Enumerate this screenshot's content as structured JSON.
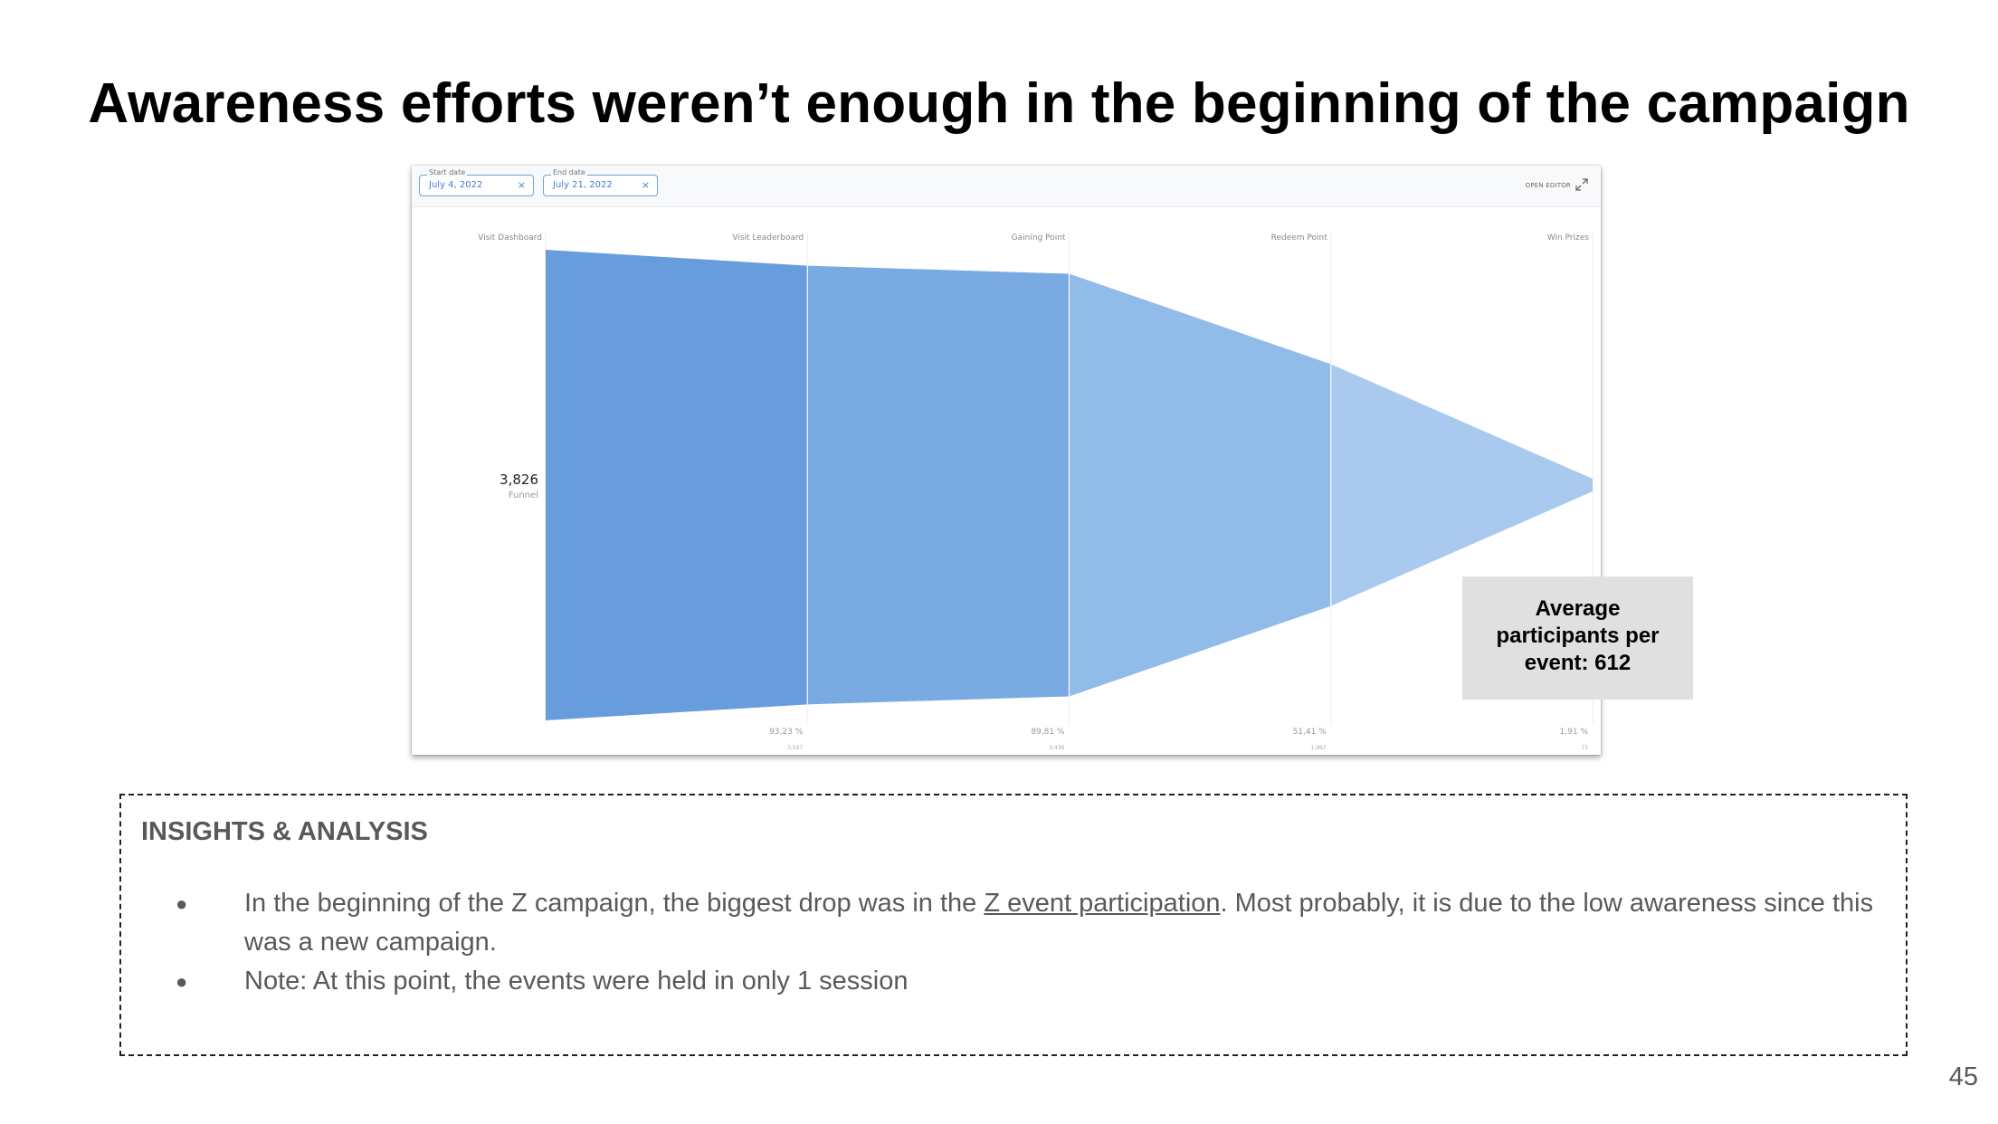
{
  "slide": {
    "title": "Awareness efforts weren’t enough in the beginning of the campaign",
    "page_number": "45"
  },
  "filters": {
    "start_date": {
      "legend": "Start date",
      "value": "July 4, 2022",
      "clear": "×"
    },
    "end_date": {
      "legend": "End date",
      "value": "July 21, 2022",
      "clear": "×"
    },
    "open_editor_label": "OPEN EDITOR",
    "expand_icon": "expand-icon"
  },
  "chart_data": {
    "type": "funnel",
    "steps": [
      "Visit Dashboard",
      "Visit Leaderboard",
      "Gaining Point",
      "Redeem Point",
      "Win Prizes"
    ],
    "values": [
      3826,
      3567,
      3436,
      1967,
      73
    ],
    "conversion_labels": [
      "",
      "93,23 %",
      "89,81 %",
      "51,41 %",
      "1,91 %"
    ],
    "count_labels": [
      "",
      "3,567",
      "3,436",
      "1,967",
      "73"
    ],
    "total_label": "3,826",
    "total_sublabel": "Funnel",
    "colors": [
      "#679ddd",
      "#7aaae2",
      "#91bbe8",
      "#aac9ee"
    ]
  },
  "callout": {
    "line1": "Average",
    "line2": "participants per",
    "line3": "event: 612"
  },
  "insights": {
    "heading": "INSIGHTS & ANALYSIS",
    "bullet_char": "●",
    "bullets": [
      {
        "before": "In the beginning of the Z campaign, the biggest drop was in the ",
        "link": "Z event participation",
        "after": ". Most probably, it is due to the low awareness since this was a new campaign."
      },
      {
        "text": "Note: At this point, the events were held in only 1 session"
      }
    ]
  }
}
